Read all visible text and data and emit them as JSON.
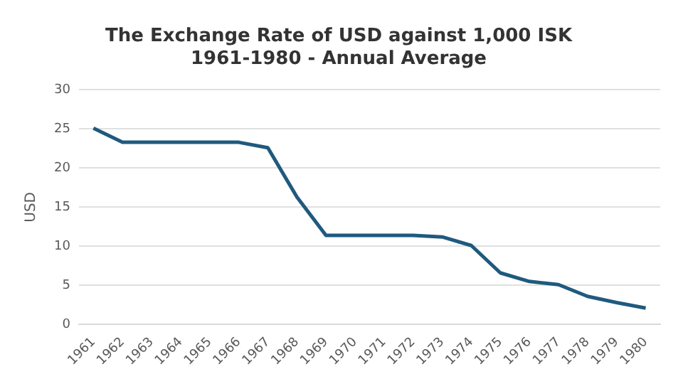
{
  "chart_data": {
    "type": "line",
    "title": "The Exchange Rate of USD against 1,000 ISK 1961-1980 - Annual Average",
    "ylabel": "USD",
    "categories": [
      "1961",
      "1962",
      "1963",
      "1964",
      "1965",
      "1966",
      "1967",
      "1968",
      "1969",
      "1970",
      "1971",
      "1972",
      "1973",
      "1974",
      "1975",
      "1976",
      "1977",
      "1978",
      "1979",
      "1980"
    ],
    "series": [
      {
        "color": "#1f5a7e",
        "values": [
          25.1,
          23.3,
          23.3,
          23.3,
          23.3,
          23.3,
          22.6,
          16.3,
          11.4,
          11.4,
          11.4,
          11.4,
          11.2,
          10.1,
          6.6,
          5.5,
          5.1,
          3.6,
          2.8,
          2.1
        ]
      }
    ],
    "ylim": [
      0,
      30
    ],
    "yticks": [
      0,
      5,
      10,
      15,
      20,
      25,
      30
    ],
    "grid": "y",
    "legend": false,
    "marker": "none",
    "line_style": "solid"
  }
}
